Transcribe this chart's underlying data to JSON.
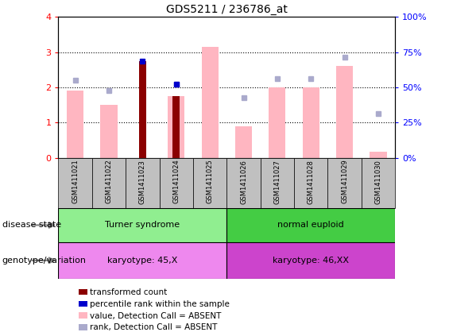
{
  "title": "GDS5211 / 236786_at",
  "samples": [
    "GSM1411021",
    "GSM1411022",
    "GSM1411023",
    "GSM1411024",
    "GSM1411025",
    "GSM1411026",
    "GSM1411027",
    "GSM1411028",
    "GSM1411029",
    "GSM1411030"
  ],
  "value_bars": [
    1.9,
    1.5,
    0.0,
    1.75,
    3.15,
    0.9,
    2.0,
    2.0,
    2.6,
    0.18
  ],
  "rank_dots": [
    2.2,
    1.9,
    0.0,
    2.1,
    0.0,
    1.7,
    2.25,
    2.25,
    2.85,
    1.25
  ],
  "transformed_count": [
    0.0,
    0.0,
    2.75,
    1.75,
    0.0,
    0.0,
    0.0,
    0.0,
    0.0,
    0.0
  ],
  "percentile_rank": [
    0.0,
    0.0,
    2.75,
    2.1,
    0.0,
    0.0,
    0.0,
    0.0,
    0.0,
    0.0
  ],
  "disease_state_labels": [
    "Turner syndrome",
    "normal euploid"
  ],
  "genotype_labels": [
    "karyotype: 45,X",
    "karyotype: 46,XX"
  ],
  "left_ylim": [
    0,
    4
  ],
  "right_ylim": [
    0,
    100
  ],
  "left_yticks": [
    0,
    1,
    2,
    3,
    4
  ],
  "right_yticks": [
    0,
    25,
    50,
    75,
    100
  ],
  "left_yticklabels": [
    "0",
    "1",
    "2",
    "3",
    "4"
  ],
  "right_yticklabels": [
    "0%",
    "25%",
    "50%",
    "75%",
    "100%"
  ],
  "bar_color_value": "#FFB6C1",
  "bar_color_transformed": "#8B0000",
  "dot_color_rank": "#AAAACC",
  "dot_color_percentile": "#0000CC",
  "disease_state_color_turner": "#90EE90",
  "disease_state_color_normal": "#44CC44",
  "genotype_color_light": "#EE88EE",
  "genotype_color_dark": "#CC44CC",
  "legend_items": [
    {
      "label": "transformed count",
      "color": "#8B0000"
    },
    {
      "label": "percentile rank within the sample",
      "color": "#0000CC"
    },
    {
      "label": "value, Detection Call = ABSENT",
      "color": "#FFB6C1"
    },
    {
      "label": "rank, Detection Call = ABSENT",
      "color": "#AAAACC"
    }
  ]
}
